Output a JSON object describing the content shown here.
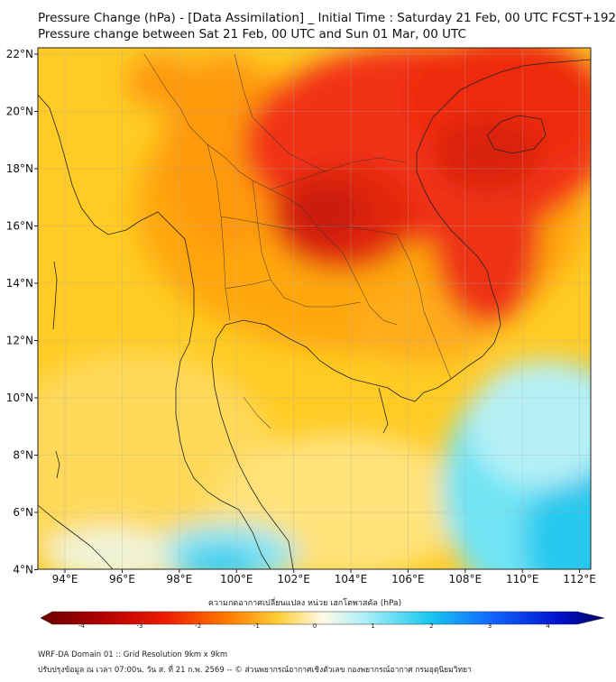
{
  "title_line1": "Pressure Change (hPa) - [Data Assimilation] _ Initial Time : Saturday 21 Feb, 00 UTC FCST+192",
  "title_line2": "Pressure change between Sat 21 Feb, 00 UTC and Sun 01 Mar, 00 UTC",
  "axes": {
    "lon_ticks": [
      "94°E",
      "96°E",
      "98°E",
      "100°E",
      "102°E",
      "104°E",
      "106°E",
      "108°E",
      "110°E",
      "112°E"
    ],
    "lat_ticks": [
      "22°N",
      "20°N",
      "18°N",
      "16°N",
      "14°N",
      "12°N",
      "10°N",
      "8°N",
      "6°N",
      "4°N"
    ]
  },
  "colorbar": {
    "label": "ความกดอากาศเปลี่ยนแปลง หน่วย เฮกโตพาสคัล (hPa)",
    "ticks": [
      "-4",
      "-3",
      "-2",
      "-1",
      "0",
      "1",
      "2",
      "3",
      "4"
    ],
    "min": -4.5,
    "max": 4.5
  },
  "footer_line1": "WRF-DA Domain 01 :: Grid Resolution 9km x 9km",
  "footer_line2": "ปรับปรุงข้อมูล ณ เวลา 07:00น. วัน ส. ที่ 21 ก.พ. 2569 -- © ส่วนพยากรณ์อากาศเชิงตัวเลข กองพยากรณ์อากาศ กรมอุตุนิยมวิทยา"
}
